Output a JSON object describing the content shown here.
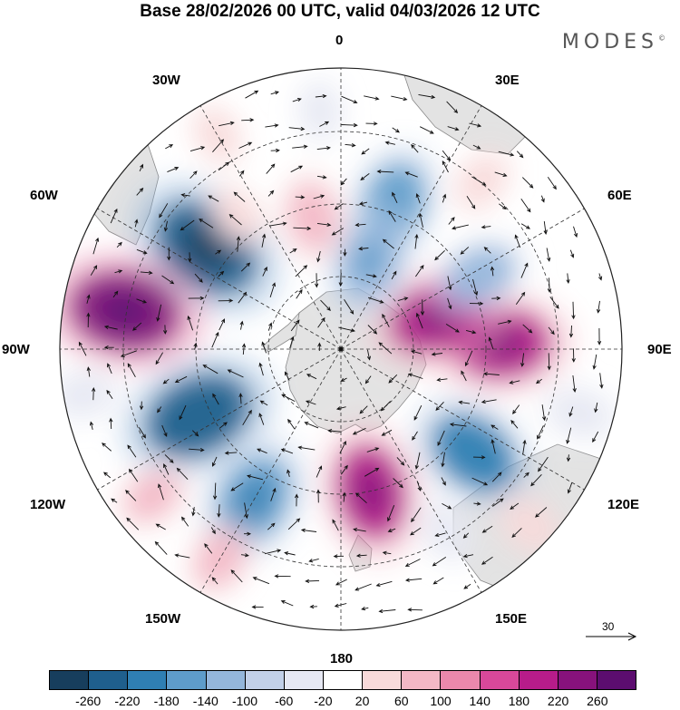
{
  "title": "Base 28/02/2026 00 UTC, valid 04/03/2026 12 UTC",
  "brand": "MODES",
  "brand_mark": "©",
  "longitude_labels": {
    "north": "0",
    "ne": "30E",
    "ene": "60E",
    "east": "90E",
    "ese": "120E",
    "se": "150E",
    "south": "180",
    "sw": "150W",
    "wsw": "120W",
    "west": "90W",
    "wnw": "60W",
    "nw": "30W"
  },
  "reference_vector": {
    "label": "30"
  },
  "colorbar": {
    "ticks": [
      "-260",
      "-220",
      "-180",
      "-140",
      "-100",
      "-60",
      "-20",
      "20",
      "60",
      "100",
      "140",
      "180",
      "220",
      "260"
    ],
    "colors": [
      "#173e5d",
      "#1f5f8d",
      "#2f7fb3",
      "#5e9cca",
      "#94b6db",
      "#c2d0e8",
      "#e6e8f3",
      "#ffffff",
      "#f8dada",
      "#f3b8c6",
      "#eb88ac",
      "#d9489a",
      "#b71c8a",
      "#87127c",
      "#5c0d6f"
    ]
  },
  "anomaly_centers": [
    {
      "lon": -53,
      "r": 0.6,
      "value": -250
    },
    {
      "lon": -80,
      "r": 0.78,
      "value": 250
    },
    {
      "lon": -115,
      "r": 0.56,
      "value": -240
    },
    {
      "lon": -150,
      "r": 0.62,
      "value": -180
    },
    {
      "lon": 168,
      "r": 0.52,
      "value": 200
    },
    {
      "lon": 128,
      "r": 0.6,
      "value": -190
    },
    {
      "lon": 88,
      "r": 0.57,
      "value": 210
    },
    {
      "lon": 72,
      "r": 0.36,
      "value": 200
    },
    {
      "lon": 62,
      "r": 0.56,
      "value": -120
    },
    {
      "lon": 20,
      "r": 0.55,
      "value": -150
    },
    {
      "lon": 18,
      "r": 0.33,
      "value": -140
    },
    {
      "lon": -12,
      "r": 0.48,
      "value": 90
    },
    {
      "lon": -38,
      "r": 0.6,
      "value": 40
    },
    {
      "lon": 40,
      "r": 0.78,
      "value": 40
    },
    {
      "lon": 133,
      "r": 0.92,
      "value": 50
    },
    {
      "lon": -150,
      "r": 0.86,
      "value": 70
    },
    {
      "lon": -128,
      "r": 0.85,
      "value": 60
    },
    {
      "lon": 105,
      "r": 0.88,
      "value": -60
    },
    {
      "lon": -100,
      "r": 0.93,
      "value": -50
    },
    {
      "lon": -30,
      "r": 0.88,
      "value": 30
    },
    {
      "lon": 150,
      "r": 0.75,
      "value": -40
    },
    {
      "lon": -5,
      "r": 0.85,
      "value": -30
    }
  ]
}
